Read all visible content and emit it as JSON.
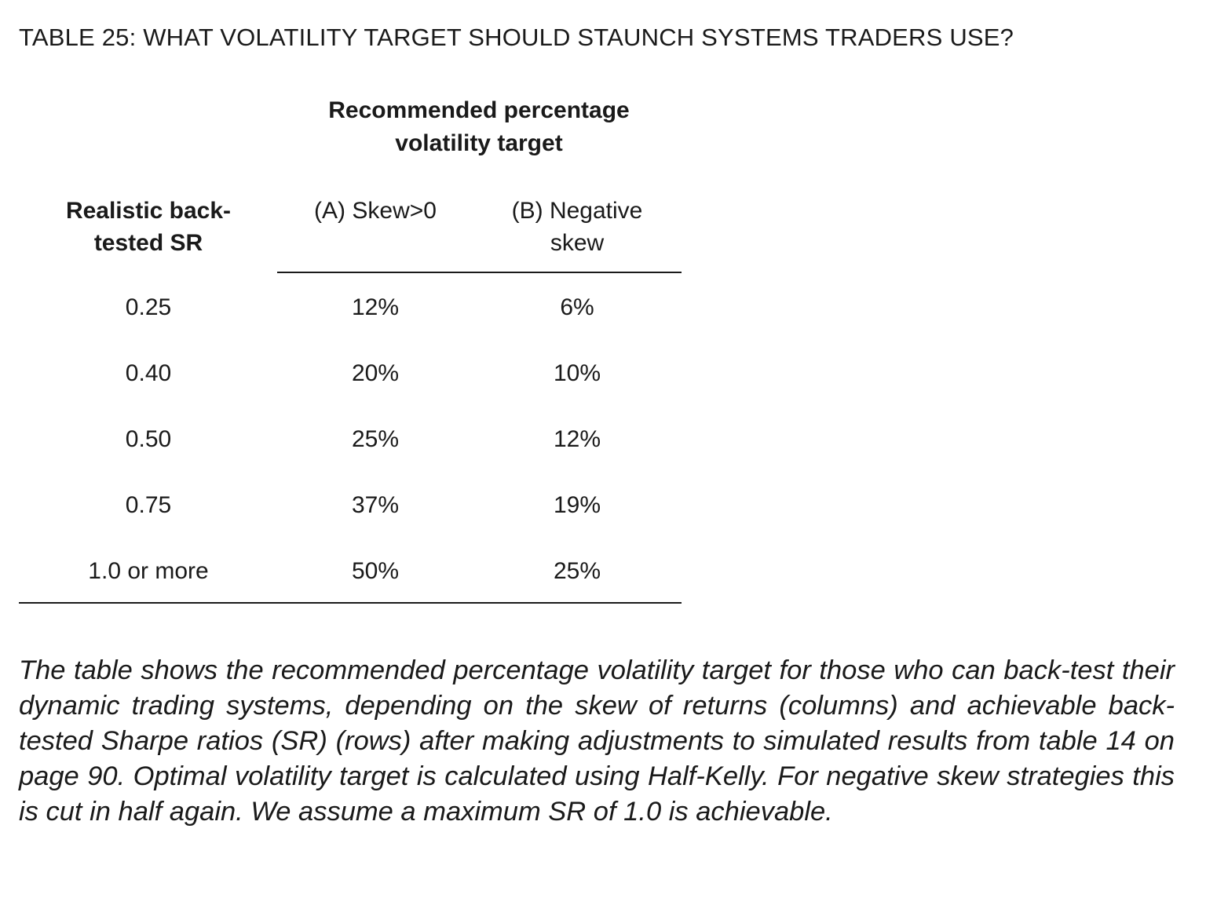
{
  "title": "TABLE 25: WHAT VOLATILITY TARGET SHOULD STAUNCH SYSTEMS TRADERS USE?",
  "table": {
    "group_header_line1": "Recommended percentage",
    "group_header_line2": "volatility target",
    "columns": {
      "sr_line1": "Realistic back-",
      "sr_line2": "tested SR",
      "a_line1": "(A) Skew>0",
      "b_line1": "(B) Negative",
      "b_line2": "skew"
    },
    "rows": [
      {
        "sr": "0.25",
        "a": "12%",
        "b": "6%"
      },
      {
        "sr": "0.40",
        "a": "20%",
        "b": "10%"
      },
      {
        "sr": "0.50",
        "a": "25%",
        "b": "12%"
      },
      {
        "sr": "0.75",
        "a": "37%",
        "b": "19%"
      },
      {
        "sr": "1.0 or more",
        "a": "50%",
        "b": "25%"
      }
    ]
  },
  "caption": "The table shows the recommended percentage volatility target for those who can back-test their dynamic trading systems, depending on the skew of returns (columns) and achievable back-tested Sharpe ratios (SR) (rows) after making adjustments to simulated results from table 14 on page 90. Optimal volatility target is calculated using Half-Kelly. For negative skew strategies this is cut in half again. We assume a maximum SR of 1.0 is achievable."
}
